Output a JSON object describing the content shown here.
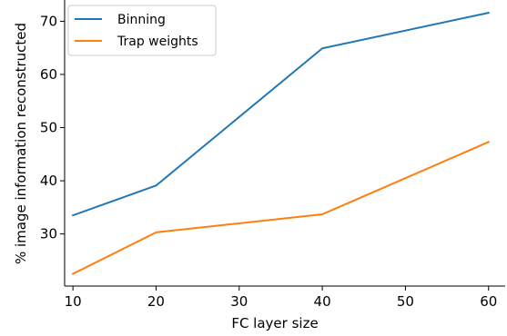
{
  "chart_data": {
    "type": "line",
    "title": "",
    "xlabel": "FC layer size",
    "ylabel": "% image information reconstructed",
    "x": [
      10,
      20,
      40,
      60
    ],
    "x_ticks": [
      10,
      20,
      30,
      40,
      50,
      60
    ],
    "x_tick_labels": [
      "10",
      "20",
      "30",
      "40",
      "50",
      "60"
    ],
    "y_ticks": [
      30,
      40,
      50,
      60,
      70
    ],
    "y_tick_labels": [
      "30",
      "40",
      "50",
      "60",
      "70"
    ],
    "xlim": [
      9,
      62
    ],
    "ylim": [
      20.2,
      74
    ],
    "grid": false,
    "legend_position": "top-left",
    "series": [
      {
        "name": "Binning",
        "color": "#1f77b4",
        "values": [
          33.5,
          39.1,
          64.9,
          71.6
        ]
      },
      {
        "name": "Trap weights",
        "color": "#ff7f0e",
        "values": [
          22.5,
          30.3,
          33.7,
          47.3
        ]
      }
    ]
  }
}
